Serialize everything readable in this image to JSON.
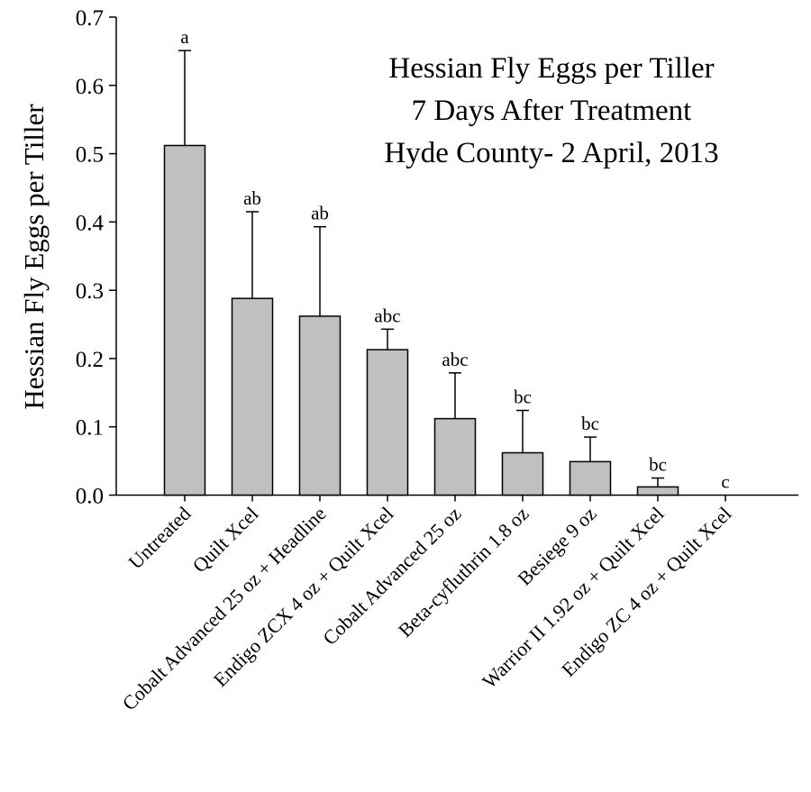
{
  "chart_data": {
    "type": "bar",
    "title_lines": [
      "Hessian Fly Eggs per Tiller",
      "7 Days After Treatment",
      "Hyde County- 2 April, 2013"
    ],
    "xlabel": "",
    "ylabel": "Hessian Fly Eggs per Tiller",
    "ylim": [
      0,
      0.7
    ],
    "yticks": [
      "0.0",
      "0.1",
      "0.2",
      "0.3",
      "0.4",
      "0.5",
      "0.6",
      "0.7"
    ],
    "grid": false,
    "bar_color": "#c0c0c0",
    "categories": [
      "Untreated",
      "Quilt Xcel",
      "Cobalt Advanced 25 oz + Headline",
      "Endigo ZCX 4 oz + Quilt Xcel",
      "Cobalt Advanced 25 oz",
      "Beta-cyfluthrin 1.8 oz",
      "Besiege 9 oz",
      "Warrior II 1.92 oz + Quilt Xcel",
      "Endigo ZC 4 oz + Quilt Xcel"
    ],
    "values": [
      0.512,
      0.288,
      0.262,
      0.213,
      0.112,
      0.062,
      0.049,
      0.012,
      0.0
    ],
    "error_upper": [
      0.651,
      0.415,
      0.393,
      0.243,
      0.179,
      0.124,
      0.085,
      0.025,
      0.0
    ],
    "letters": [
      "a",
      "ab",
      "ab",
      "abc",
      "abc",
      "bc",
      "bc",
      "bc",
      "c"
    ]
  }
}
